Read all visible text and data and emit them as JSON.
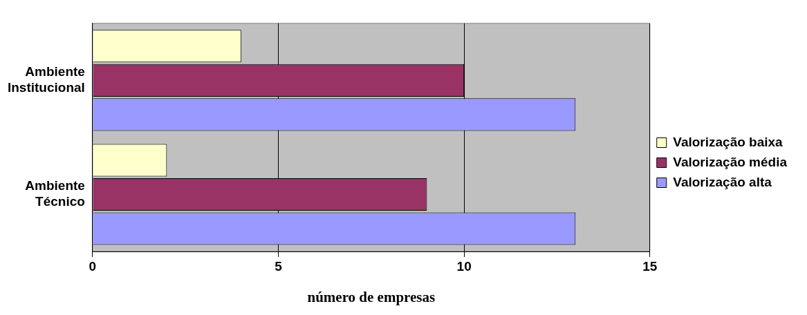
{
  "chart_data": {
    "type": "bar",
    "orientation": "horizontal",
    "categories": [
      "Ambiente Institucional",
      "Ambiente Técnico"
    ],
    "series": [
      {
        "name": "Valorização baixa",
        "color": "#ffffcc",
        "values": [
          4,
          2
        ]
      },
      {
        "name": "Valorização média",
        "color": "#993366",
        "values": [
          10,
          9
        ]
      },
      {
        "name": "Valorização alta",
        "color": "#9999ff",
        "values": [
          13,
          13
        ]
      }
    ],
    "xlabel": "número de empresas",
    "xlim": [
      0,
      15
    ],
    "xticks": [
      0,
      5,
      10,
      15
    ],
    "grid": "x",
    "legend": "right"
  }
}
